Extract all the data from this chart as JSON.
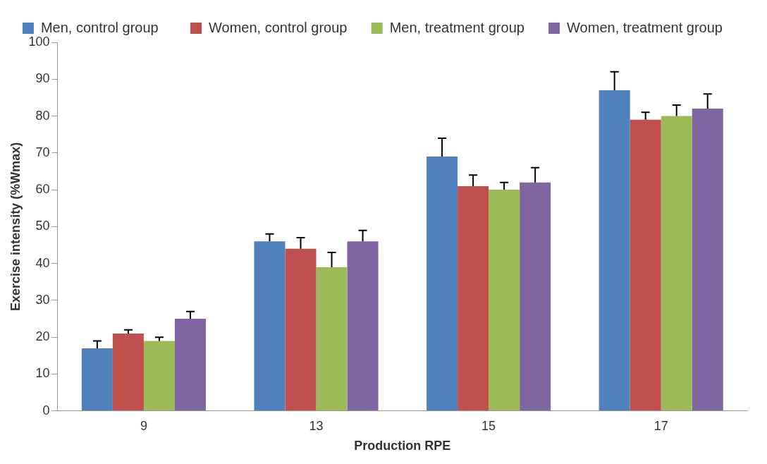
{
  "chart_data": {
    "type": "bar",
    "xlabel": "Production RPE",
    "ylabel": "Exercise intensity (%Wmax)",
    "categories": [
      "9",
      "13",
      "15",
      "17"
    ],
    "series": [
      {
        "name": "Men, control group",
        "color": "#4f81bd",
        "values": [
          17,
          46,
          69,
          87
        ],
        "errors": [
          [
            17,
            19
          ],
          [
            46,
            48
          ],
          [
            69,
            74
          ],
          [
            87,
            92
          ]
        ]
      },
      {
        "name": "Women, control group",
        "color": "#c0504d",
        "values": [
          21,
          44,
          61,
          79
        ],
        "errors": [
          [
            21,
            22
          ],
          [
            44,
            47
          ],
          [
            61,
            64
          ],
          [
            79,
            81
          ]
        ]
      },
      {
        "name": "Men, treatment group",
        "color": "#9bbb59",
        "values": [
          19,
          39,
          60,
          80
        ],
        "errors": [
          [
            19,
            20
          ],
          [
            39,
            43
          ],
          [
            60,
            62
          ],
          [
            80,
            83
          ]
        ]
      },
      {
        "name": "Women, treatment group",
        "color": "#8064a2",
        "values": [
          25,
          46,
          62,
          82
        ],
        "errors": [
          [
            25,
            27
          ],
          [
            46,
            49
          ],
          [
            62,
            66
          ],
          [
            82,
            86
          ]
        ]
      }
    ],
    "ylim": [
      0,
      100
    ],
    "yticks": [
      0,
      10,
      20,
      30,
      40,
      50,
      60,
      70,
      80,
      90,
      100
    ],
    "grid": false,
    "legend": "top"
  }
}
